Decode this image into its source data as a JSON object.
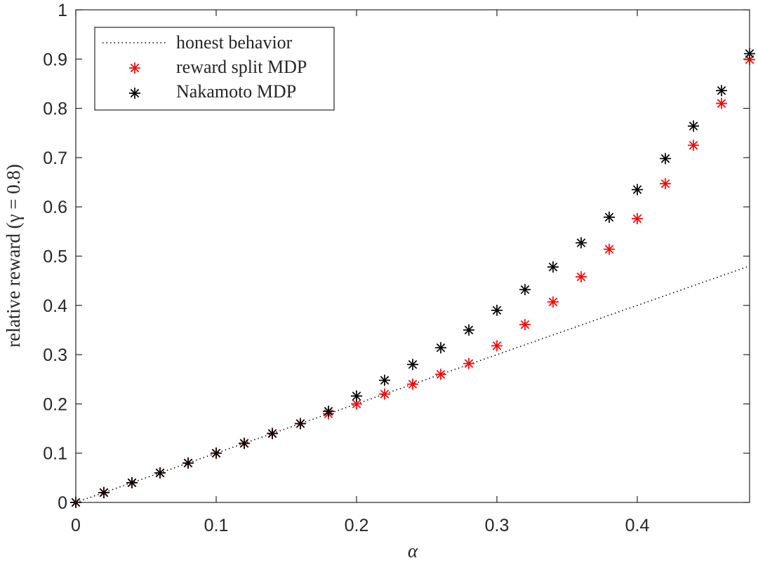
{
  "chart_data": {
    "type": "scatter",
    "xlabel": "α",
    "ylabel": "relative reward (γ = 0.8)",
    "xlim": [
      0,
      0.48
    ],
    "ylim": [
      0,
      1
    ],
    "xticks": [
      "0",
      "0.1",
      "0.2",
      "0.3",
      "0.4"
    ],
    "xtick_values": [
      0,
      0.1,
      0.2,
      0.3,
      0.4
    ],
    "yticks": [
      "0",
      "0.1",
      "0.2",
      "0.3",
      "0.4",
      "0.5",
      "0.6",
      "0.7",
      "0.8",
      "0.9",
      "1"
    ],
    "ytick_values": [
      0,
      0.1,
      0.2,
      0.3,
      0.4,
      0.5,
      0.6,
      0.7,
      0.8,
      0.9,
      1
    ],
    "legend_position": "top-left",
    "series": [
      {
        "name": "honest behavior",
        "style": "dotted-line",
        "color": "#000000",
        "x": [
          0,
          0.48
        ],
        "y": [
          0,
          0.48
        ]
      },
      {
        "name": "reward split MDP",
        "style": "asterisk",
        "color": "#ff0000",
        "x": [
          0,
          0.02,
          0.04,
          0.06,
          0.08,
          0.1,
          0.12,
          0.14,
          0.16,
          0.18,
          0.2,
          0.22,
          0.24,
          0.26,
          0.28,
          0.3,
          0.32,
          0.34,
          0.36,
          0.38,
          0.4,
          0.42,
          0.44,
          0.46,
          0.48
        ],
        "y": [
          0,
          0.02,
          0.04,
          0.06,
          0.08,
          0.1,
          0.12,
          0.14,
          0.16,
          0.18,
          0.2,
          0.22,
          0.24,
          0.26,
          0.282,
          0.318,
          0.361,
          0.407,
          0.458,
          0.514,
          0.576,
          0.647,
          0.725,
          0.81,
          0.899
        ]
      },
      {
        "name": "Nakamoto MDP",
        "style": "asterisk",
        "color": "#000000",
        "x": [
          0,
          0.02,
          0.04,
          0.06,
          0.08,
          0.1,
          0.12,
          0.14,
          0.16,
          0.18,
          0.2,
          0.22,
          0.24,
          0.26,
          0.28,
          0.3,
          0.32,
          0.34,
          0.36,
          0.38,
          0.4,
          0.42,
          0.44,
          0.46,
          0.48
        ],
        "y": [
          0,
          0.02,
          0.04,
          0.06,
          0.08,
          0.1,
          0.12,
          0.14,
          0.16,
          0.185,
          0.216,
          0.248,
          0.28,
          0.314,
          0.35,
          0.39,
          0.432,
          0.478,
          0.527,
          0.579,
          0.635,
          0.698,
          0.764,
          0.836,
          0.911
        ]
      }
    ]
  }
}
